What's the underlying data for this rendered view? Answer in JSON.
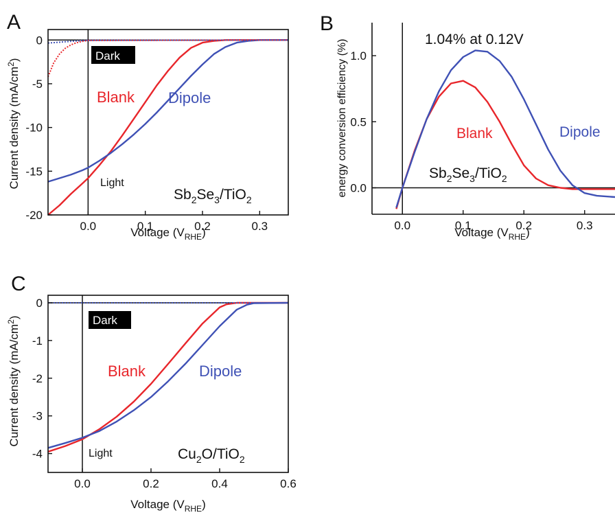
{
  "colors": {
    "blank": "#e8262b",
    "dipole": "#3f51b5",
    "axis": "#111111",
    "dark_box": "#000000"
  },
  "chart_data": [
    {
      "panel": "A",
      "type": "line",
      "xlabel": "Voltage (VRHE)",
      "xlabel_main": "Voltage (V",
      "xlabel_sub": "RHE",
      "xlabel_close": ")",
      "ylabel": "Current density (mA/cm2)",
      "ylabel_main": "Current density (mA/cm",
      "ylabel_sup": "2",
      "ylabel_close": ")",
      "xlim": [
        -0.07,
        0.35
      ],
      "ylim": [
        -20,
        1.2
      ],
      "xticks": [
        0.0,
        0.1,
        0.2,
        0.3
      ],
      "xtick_labels": [
        "0.0",
        "0.1",
        "0.2",
        "0.3"
      ],
      "yticks": [
        0,
        -5,
        -10,
        -15,
        -20
      ],
      "ytick_labels": [
        "0",
        "-5",
        "-10",
        "-15",
        "-20"
      ],
      "annotations": {
        "dark": "Dark",
        "light": "Light",
        "blank": "Blank",
        "dipole": "Dipole",
        "sample": {
          "p1": "Sb",
          "s1": "2",
          "p2": "Se",
          "s2": "3",
          "p3": "/TiO",
          "s3": "2"
        }
      },
      "series": [
        {
          "name": "Blank",
          "condition": "light",
          "x": [
            -0.07,
            -0.05,
            -0.03,
            -0.01,
            0.0,
            0.02,
            0.04,
            0.06,
            0.08,
            0.1,
            0.12,
            0.14,
            0.16,
            0.18,
            0.2,
            0.22,
            0.24,
            0.26,
            0.28,
            0.3,
            0.35
          ],
          "y": [
            -20.0,
            -18.9,
            -17.6,
            -16.4,
            -15.8,
            -14.3,
            -12.7,
            -10.9,
            -9.0,
            -7.1,
            -5.2,
            -3.5,
            -2.0,
            -0.9,
            -0.3,
            -0.1,
            0.0,
            0.0,
            0.0,
            0.0,
            0.0
          ]
        },
        {
          "name": "Dipole",
          "condition": "light",
          "x": [
            -0.07,
            -0.05,
            -0.03,
            -0.01,
            0.0,
            0.02,
            0.04,
            0.06,
            0.08,
            0.1,
            0.12,
            0.14,
            0.16,
            0.18,
            0.2,
            0.22,
            0.24,
            0.26,
            0.28,
            0.3,
            0.35
          ],
          "y": [
            -16.2,
            -15.8,
            -15.4,
            -14.9,
            -14.6,
            -13.8,
            -12.9,
            -11.9,
            -10.8,
            -9.6,
            -8.3,
            -6.9,
            -5.5,
            -4.1,
            -2.8,
            -1.6,
            -0.8,
            -0.3,
            -0.1,
            0.0,
            0.0
          ]
        },
        {
          "name": "Blank",
          "condition": "dark",
          "x": [
            -0.07,
            -0.06,
            -0.05,
            -0.04,
            -0.03,
            -0.02,
            -0.01,
            0.0,
            0.35
          ],
          "y": [
            -4.2,
            -2.6,
            -1.6,
            -0.95,
            -0.55,
            -0.3,
            -0.15,
            -0.05,
            0.0
          ]
        },
        {
          "name": "Dipole",
          "condition": "dark",
          "x": [
            -0.07,
            -0.04,
            -0.02,
            0.0,
            0.35
          ],
          "y": [
            -0.35,
            -0.2,
            -0.1,
            -0.03,
            0.0
          ]
        }
      ]
    },
    {
      "panel": "B",
      "type": "line",
      "xlabel": "Voltage (VRHE)",
      "xlabel_main": "Voltage (V",
      "xlabel_sub": "RHE",
      "xlabel_close": ")",
      "ylabel": "energy conversion efficiency (%)",
      "xlim": [
        -0.05,
        0.35
      ],
      "ylim": [
        -0.2,
        1.25
      ],
      "xticks": [
        0.0,
        0.1,
        0.2,
        0.3
      ],
      "xtick_labels": [
        "0.0",
        "0.1",
        "0.2",
        "0.3"
      ],
      "yticks": [
        0.0,
        0.5,
        1.0
      ],
      "ytick_labels": [
        "0.0",
        "0.5",
        "1.0"
      ],
      "annotations": {
        "peak": "1.04% at 0.12V",
        "blank": "Blank",
        "dipole": "Dipole",
        "sample": {
          "p1": "Sb",
          "s1": "2",
          "p2": "Se",
          "s2": "3",
          "p3": "/TiO",
          "s3": "2"
        }
      },
      "series": [
        {
          "name": "Blank",
          "x": [
            -0.01,
            0.0,
            0.02,
            0.04,
            0.06,
            0.08,
            0.1,
            0.12,
            0.14,
            0.16,
            0.18,
            0.2,
            0.22,
            0.24,
            0.26,
            0.28,
            0.3,
            0.35
          ],
          "y": [
            -0.16,
            0.0,
            0.28,
            0.52,
            0.69,
            0.79,
            0.81,
            0.76,
            0.65,
            0.5,
            0.33,
            0.17,
            0.07,
            0.02,
            0.0,
            -0.01,
            -0.01,
            -0.01
          ]
        },
        {
          "name": "Dipole",
          "x": [
            -0.01,
            0.0,
            0.02,
            0.04,
            0.06,
            0.08,
            0.1,
            0.12,
            0.14,
            0.16,
            0.18,
            0.2,
            0.22,
            0.24,
            0.26,
            0.28,
            0.3,
            0.32,
            0.35
          ],
          "y": [
            -0.15,
            0.0,
            0.27,
            0.52,
            0.73,
            0.89,
            0.99,
            1.04,
            1.03,
            0.96,
            0.84,
            0.67,
            0.48,
            0.29,
            0.13,
            0.02,
            -0.04,
            -0.06,
            -0.07
          ]
        }
      ]
    },
    {
      "panel": "C",
      "type": "line",
      "xlabel": "Voltage (VRHE)",
      "xlabel_main": "Voltage (V",
      "xlabel_sub": "RHE",
      "xlabel_close": ")",
      "ylabel": "Current density (mA/cm2)",
      "ylabel_main": "Current density (mA/cm",
      "ylabel_sup": "2",
      "ylabel_close": ")",
      "xlim": [
        -0.1,
        0.6
      ],
      "ylim": [
        -4.5,
        0.2
      ],
      "xticks": [
        0.0,
        0.2,
        0.4,
        0.6
      ],
      "xtick_labels": [
        "0.0",
        "0.2",
        "0.4",
        "0.6"
      ],
      "yticks": [
        0,
        -1,
        -2,
        -3,
        -4
      ],
      "ytick_labels": [
        "0",
        "-1",
        "-2",
        "-3",
        "-4"
      ],
      "annotations": {
        "dark": "Dark",
        "light": "Light",
        "blank": "Blank",
        "dipole": "Dipole",
        "sample": {
          "p1": "Cu",
          "s1": "2",
          "p2": "O/TiO",
          "s2": "2"
        }
      },
      "series": [
        {
          "name": "Blank",
          "condition": "light",
          "x": [
            -0.1,
            -0.05,
            0.0,
            0.05,
            0.1,
            0.15,
            0.2,
            0.25,
            0.3,
            0.35,
            0.4,
            0.42,
            0.45,
            0.5,
            0.6
          ],
          "y": [
            -3.95,
            -3.8,
            -3.62,
            -3.35,
            -3.02,
            -2.62,
            -2.15,
            -1.62,
            -1.08,
            -0.55,
            -0.12,
            -0.04,
            0.0,
            0.0,
            0.0
          ]
        },
        {
          "name": "Dipole",
          "condition": "light",
          "x": [
            -0.1,
            -0.05,
            0.0,
            0.05,
            0.1,
            0.15,
            0.2,
            0.25,
            0.3,
            0.35,
            0.4,
            0.45,
            0.48,
            0.5,
            0.6
          ],
          "y": [
            -3.85,
            -3.72,
            -3.58,
            -3.4,
            -3.15,
            -2.85,
            -2.5,
            -2.08,
            -1.62,
            -1.12,
            -0.62,
            -0.18,
            -0.05,
            -0.01,
            0.0
          ]
        },
        {
          "name": "Blank",
          "condition": "dark",
          "x": [
            -0.1,
            0.6
          ],
          "y": [
            0.0,
            0.0
          ]
        },
        {
          "name": "Dipole",
          "condition": "dark",
          "x": [
            -0.1,
            0.6
          ],
          "y": [
            0.0,
            0.0
          ]
        }
      ]
    }
  ],
  "panel_labels": [
    "A",
    "B",
    "C"
  ]
}
